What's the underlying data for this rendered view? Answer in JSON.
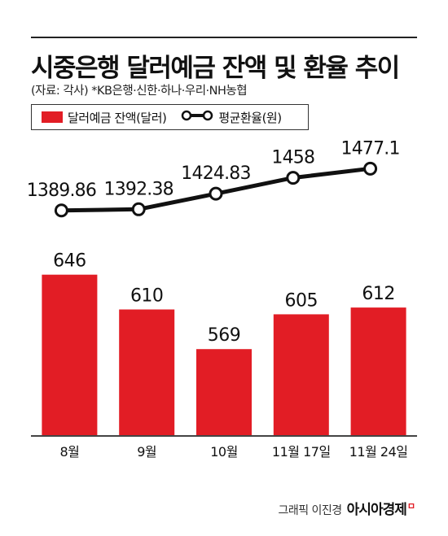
{
  "title": "시중은행 달러예금 잔액 및 환율 추이",
  "source": "(자료: 각사)  *KB은행·신한·하나·우리·NH농협",
  "legend": {
    "bar_label": "달러예금 잔액(달러)",
    "line_label": "평균환율(원)"
  },
  "credit": {
    "text": "그래픽 이진경",
    "brand": "아시아경제",
    "brand_mark": "ㅁ"
  },
  "colors": {
    "bar": "#e21d25",
    "line": "#111111",
    "marker_fill": "#ffffff"
  },
  "chart_data": {
    "type": "bar",
    "categories": [
      "8월",
      "9월",
      "10월",
      "11월 17일",
      "11월 24일"
    ],
    "series": [
      {
        "name": "달러예금 잔액(달러)",
        "type": "bar",
        "values": [
          646,
          610,
          569,
          605,
          612
        ],
        "labels": [
          "646",
          "610",
          "569",
          "605",
          "612"
        ]
      },
      {
        "name": "평균환율(원)",
        "type": "line",
        "values": [
          1389.86,
          1392.38,
          1424.83,
          1458,
          1477.1
        ],
        "labels": [
          "1389.86",
          "1392.38",
          "1424.83",
          "1458",
          "1477.1"
        ]
      }
    ],
    "bar_ylim": [
      480,
      655
    ],
    "line_ylim": [
      1320,
      1498
    ],
    "grid": false,
    "legend_position": "top-left"
  }
}
